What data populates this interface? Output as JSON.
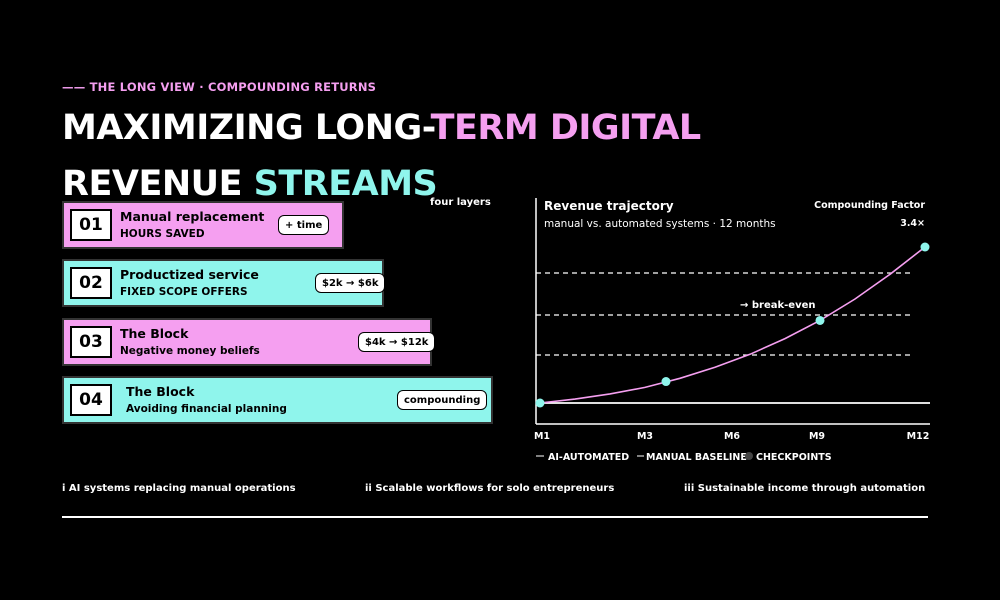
{
  "kicker": "—— THE LONG VIEW · COMPOUNDING RETURNS",
  "headline": {
    "line1_white": "MAXIMIZING LONG-",
    "line1_pink": "TERM DIGITAL",
    "line2_white": "REVENUE ",
    "line2_cyan": "STREAMS"
  },
  "layers_label": "four layers",
  "cards": [
    {
      "num": "01",
      "title": "Manual replacement",
      "subtitle": "HOURS SAVED",
      "tag": "+ time",
      "color": "#f59ff0"
    },
    {
      "num": "02",
      "title": "Productized service",
      "subtitle": "FIXED SCOPE OFFERS",
      "tag": "$2k → $6k",
      "color": "#8ff5ec"
    },
    {
      "num": "03",
      "title": "The Block",
      "subtitle": "Negative money beliefs",
      "tag": "$4k → $12k",
      "color": "#f59ff0"
    },
    {
      "num": "04",
      "title": "The Block",
      "subtitle": "Avoiding financial planning",
      "tag": "compounding",
      "color": "#8ff5ec"
    }
  ],
  "chart_data": {
    "type": "line",
    "title": "Revenue trajectory",
    "subtitle": "manual vs. automated systems · 12 months",
    "factor_label": "Compounding Factor",
    "factor_value": "3.4×",
    "annotation": "→ break-even",
    "x_ticks": [
      "M1",
      "M3",
      "M6",
      "M9",
      "M12"
    ],
    "xlim": [
      1,
      12
    ],
    "ylim": [
      1,
      3.4
    ],
    "grid_dashed": true,
    "series": [
      {
        "name": "AI-AUTOMATED",
        "x": [
          1,
          2,
          3,
          4,
          5,
          6,
          7,
          8,
          9,
          10,
          11,
          12
        ],
        "values": [
          1.0,
          1.06,
          1.14,
          1.24,
          1.38,
          1.55,
          1.75,
          1.99,
          2.27,
          2.6,
          2.98,
          3.4
        ]
      },
      {
        "name": "MANUAL BASELINE",
        "x": [
          1,
          12
        ],
        "values": [
          1.0,
          1.0
        ]
      }
    ],
    "checkpoints": [
      {
        "name": "CHECKPOINTS",
        "x": [
          1,
          4.6,
          9,
          12
        ],
        "values": [
          1.0,
          1.33,
          2.27,
          3.4
        ]
      }
    ],
    "legend": [
      "AI-AUTOMATED",
      "MANUAL BASELINE",
      "CHECKPOINTS"
    ],
    "legend_position": "bottom",
    "colors": {
      "automated": "#f59ff0",
      "baseline": "#ffffff",
      "checkpoint": "#8ff5ec"
    }
  },
  "footer": [
    "i AI systems replacing manual operations",
    "ii Scalable workflows for solo entrepreneurs",
    "iii Sustainable income through automation"
  ]
}
